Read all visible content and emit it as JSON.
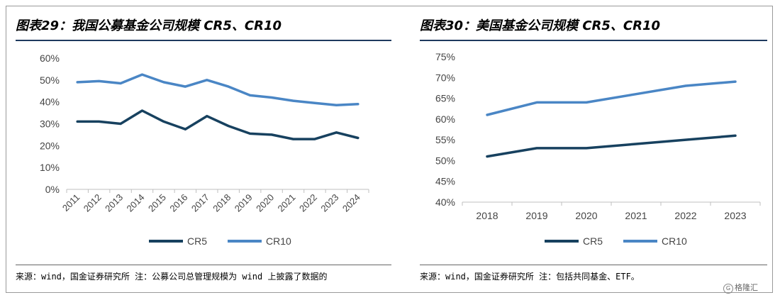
{
  "charts": {
    "left": {
      "title": "图表29：我国公募基金公司规模 CR5、CR10",
      "source": "来源：wind，国金证券研究所 注：公募公司总管理规模为 wind 上披露了数据的",
      "chart_data": {
        "type": "line",
        "categories": [
          "2011",
          "2012",
          "2013",
          "2014",
          "2015",
          "2016",
          "2017",
          "2018",
          "2019",
          "2020",
          "2021",
          "2022",
          "2023",
          "2024"
        ],
        "series": [
          {
            "name": "CR5",
            "color": "#17415f",
            "values": [
              31,
              31,
              30,
              36,
              31,
              27.5,
              33.5,
              29,
              25.5,
              25,
              23,
              23,
              26,
              23.5
            ]
          },
          {
            "name": "CR10",
            "color": "#4a86c5",
            "values": [
              49,
              49.5,
              48.5,
              52.5,
              49,
              47,
              50,
              47,
              43,
              42,
              40.5,
              39.5,
              38.5,
              39
            ]
          }
        ],
        "yticks": [
          "0%",
          "10%",
          "20%",
          "30%",
          "40%",
          "50%",
          "60%"
        ],
        "ylim": [
          0,
          60
        ],
        "legend": "bottom"
      }
    },
    "right": {
      "title": "图表30：美国基金公司规模 CR5、CR10",
      "source": "来源：wind，国金证券研究所 注：包括共同基金、ETF。",
      "chart_data": {
        "type": "line",
        "categories": [
          "2018",
          "2019",
          "2020",
          "2021",
          "2022",
          "2023"
        ],
        "series": [
          {
            "name": "CR5",
            "color": "#17415f",
            "values": [
              51,
              53,
              53,
              54,
              55,
              56
            ]
          },
          {
            "name": "CR10",
            "color": "#4a86c5",
            "values": [
              61,
              64,
              64,
              66,
              68,
              69
            ]
          }
        ],
        "yticks": [
          "40%",
          "45%",
          "50%",
          "55%",
          "60%",
          "65%",
          "70%",
          "75%"
        ],
        "ylim": [
          40,
          75
        ],
        "legend": "bottom"
      }
    }
  },
  "watermark": "格隆汇"
}
